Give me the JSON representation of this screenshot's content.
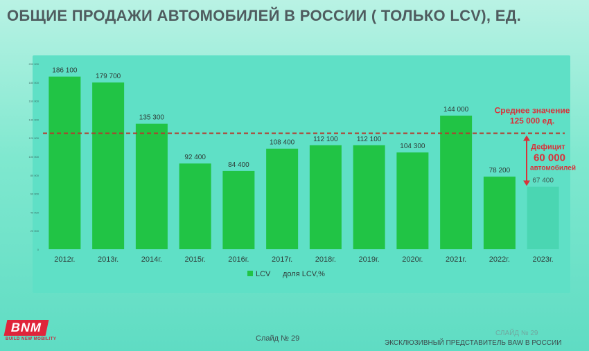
{
  "page": {
    "title": "ОБЩИЕ ПРОДАЖИ АВТОМОБИЛЕЙ В РОССИИ ( ТОЛЬКО LCV), ЕД.",
    "slide_number": "Слайд № 29",
    "slide_number_right": "СЛАЙД № 29",
    "footer_right": "ЭКСКЛЮЗИВНЫЙ ПРЕДСТАВИТЕЛЬ BAW В РОССИИ",
    "logo": {
      "text": "BNM",
      "tagline": "BUILD NEW MOBILITY"
    }
  },
  "chart_data": {
    "type": "bar",
    "categories": [
      "2012г.",
      "2013г.",
      "2014г.",
      "2015г.",
      "2016г.",
      "2017г.",
      "2018г.",
      "2019г.",
      "2020г.",
      "2021г.",
      "2022г.",
      "2023г."
    ],
    "values": [
      186100,
      179700,
      135300,
      92400,
      84400,
      108400,
      112100,
      112100,
      104300,
      144000,
      78200,
      67400
    ],
    "data_labels": [
      "186 100",
      "179 700",
      "135 300",
      "92 400",
      "84 400",
      "108 400",
      "112 100",
      "112 100",
      "104 300",
      "144 000",
      "78 200",
      "67 400"
    ],
    "highlighted_index": 11,
    "ylim": [
      0,
      200000
    ],
    "ytick_values": [
      0,
      20000,
      40000,
      60000,
      80000,
      100000,
      120000,
      140000,
      160000,
      180000,
      200000
    ],
    "ytick_labels": [
      "0",
      "20 000",
      "40 000",
      "60 000",
      "80 000",
      "100 000",
      "120 000",
      "140 000",
      "160 000",
      "180 000",
      "200 000"
    ],
    "legend": [
      "LCV",
      "доля LCV,%"
    ],
    "legend_position": "bottom",
    "average": {
      "value": 125000,
      "label_line1": "Среднее значение",
      "label_line2": "125 000 ед."
    },
    "deficit": {
      "label_top": "Дефицит",
      "label_value": "60 000",
      "label_bottom": "автомобилей"
    },
    "colors": {
      "bar": "#21c445",
      "bar_highlight": "#4ad6b2",
      "average_line": "#b43a2e",
      "annotation": "#d8323a"
    }
  }
}
